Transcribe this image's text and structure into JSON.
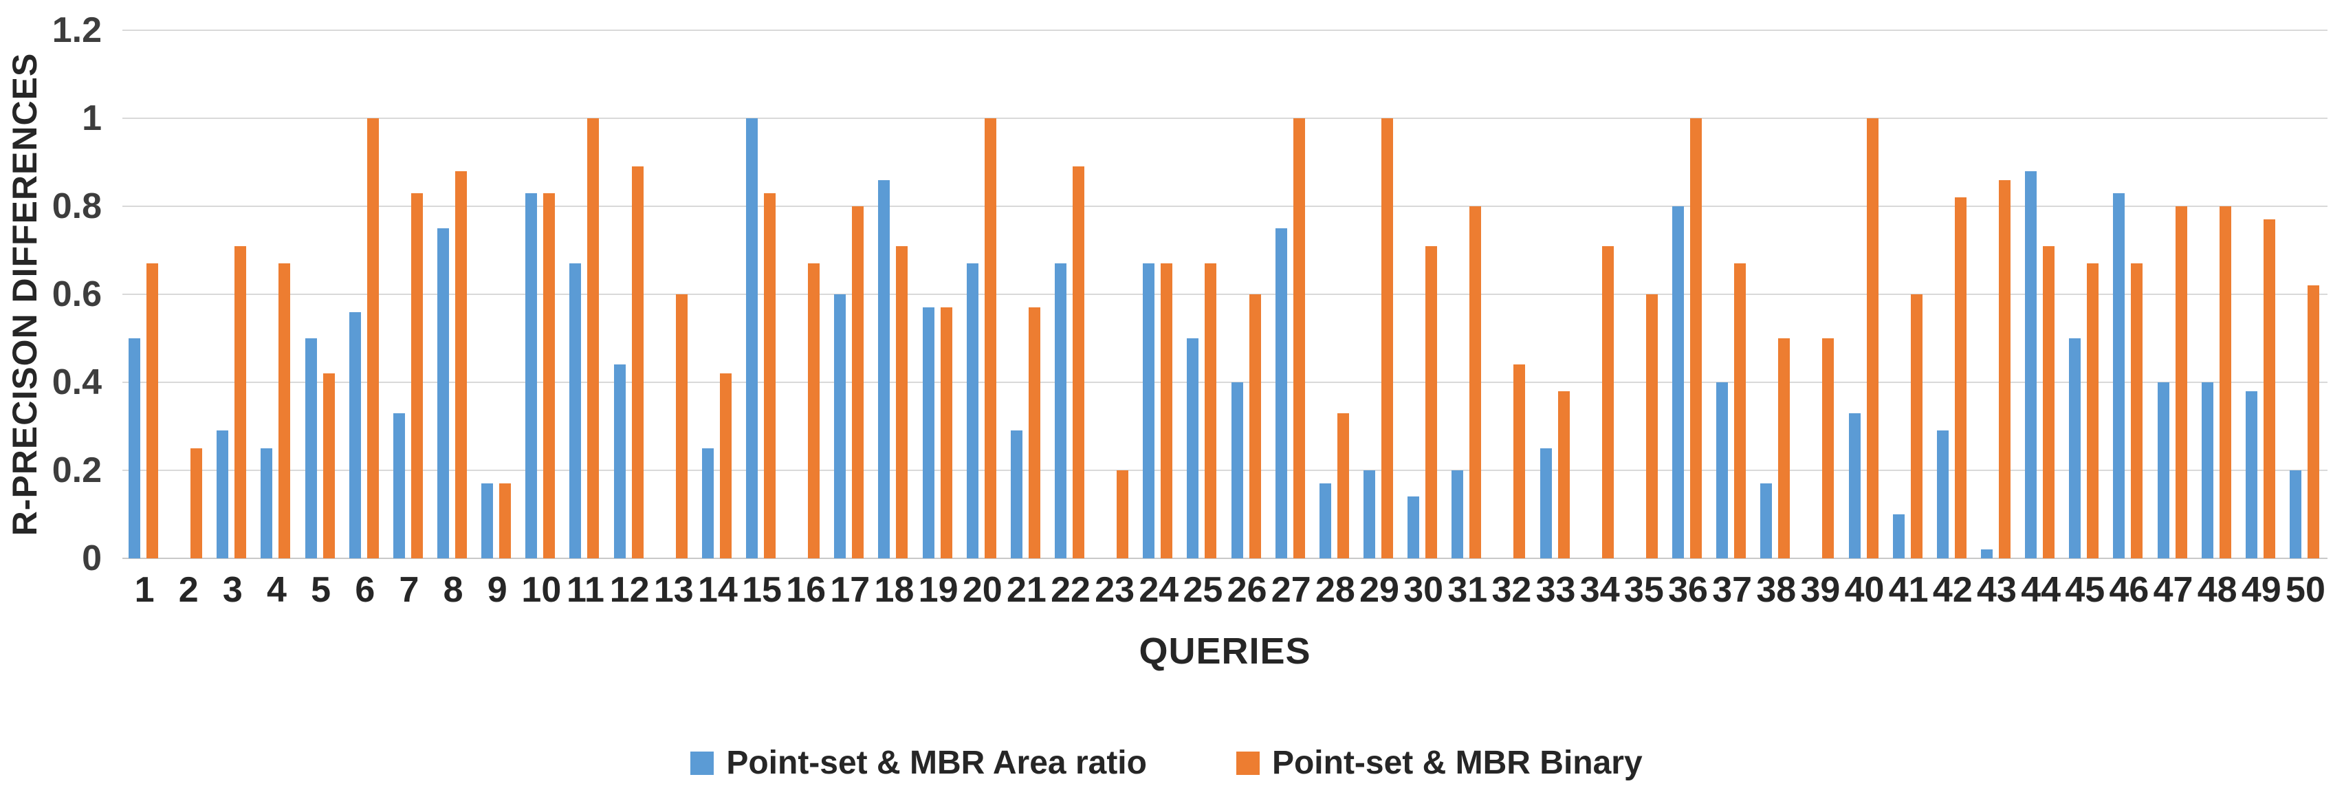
{
  "chart_data": {
    "type": "bar",
    "title": "",
    "xlabel": "QUERIES",
    "ylabel": "R-PRECISON DIFFERENCES",
    "ylim": [
      0,
      1.2
    ],
    "grid": true,
    "legend_position": "bottom",
    "grid_color": "#d9d9d9",
    "text_color": "#262626",
    "categories": [
      "1",
      "2",
      "3",
      "4",
      "5",
      "6",
      "7",
      "8",
      "9",
      "10",
      "11",
      "12",
      "13",
      "14",
      "15",
      "16",
      "17",
      "18",
      "19",
      "20",
      "21",
      "22",
      "23",
      "24",
      "25",
      "26",
      "27",
      "28",
      "29",
      "30",
      "31",
      "32",
      "33",
      "34",
      "35",
      "36",
      "37",
      "38",
      "39",
      "40",
      "41",
      "42",
      "43",
      "44",
      "45",
      "46",
      "47",
      "48",
      "49",
      "50"
    ],
    "yticks": [
      {
        "v": 0,
        "label": "0"
      },
      {
        "v": 0.2,
        "label": "0.2"
      },
      {
        "v": 0.4,
        "label": "0.4"
      },
      {
        "v": 0.6,
        "label": "0.6"
      },
      {
        "v": 0.8,
        "label": "0.8"
      },
      {
        "v": 1,
        "label": "1"
      },
      {
        "v": 1.2,
        "label": "1.2"
      }
    ],
    "series": [
      {
        "name": "Point-set & MBR Area ratio",
        "color": "#5B9BD5",
        "values": [
          0.5,
          0,
          0.29,
          0.25,
          0.5,
          0.56,
          0.33,
          0.75,
          0.17,
          0.83,
          0.67,
          0.44,
          0,
          0.25,
          1.0,
          0,
          0.6,
          0.86,
          0.57,
          0.67,
          0.29,
          0.67,
          0,
          0.67,
          0.5,
          0.4,
          0.75,
          0.17,
          0.2,
          0.14,
          0.2,
          0,
          0.25,
          0,
          0,
          0.8,
          0.4,
          0.17,
          0,
          0.33,
          0.1,
          0.29,
          0.02,
          0.88,
          0.5,
          0.83,
          0.4,
          0.4,
          0.38,
          0.2
        ]
      },
      {
        "name": "Point-set & MBR Binary",
        "color": "#ED7D31",
        "values": [
          0.67,
          0.25,
          0.71,
          0.67,
          0.42,
          1.0,
          0.83,
          0.88,
          0.17,
          0.83,
          1.0,
          0.89,
          0.6,
          0.42,
          0.83,
          0.67,
          0.8,
          0.71,
          0.57,
          1.0,
          0.57,
          0.89,
          0.2,
          0.67,
          0.67,
          0.6,
          1.0,
          0.33,
          1.0,
          0.71,
          0.8,
          0.44,
          0.38,
          0.71,
          0.6,
          1.0,
          0.67,
          0.5,
          0.5,
          1.0,
          0.6,
          0.82,
          0.86,
          0.71,
          0.67,
          0.67,
          0.8,
          0.8,
          0.77,
          0.62
        ]
      }
    ]
  }
}
